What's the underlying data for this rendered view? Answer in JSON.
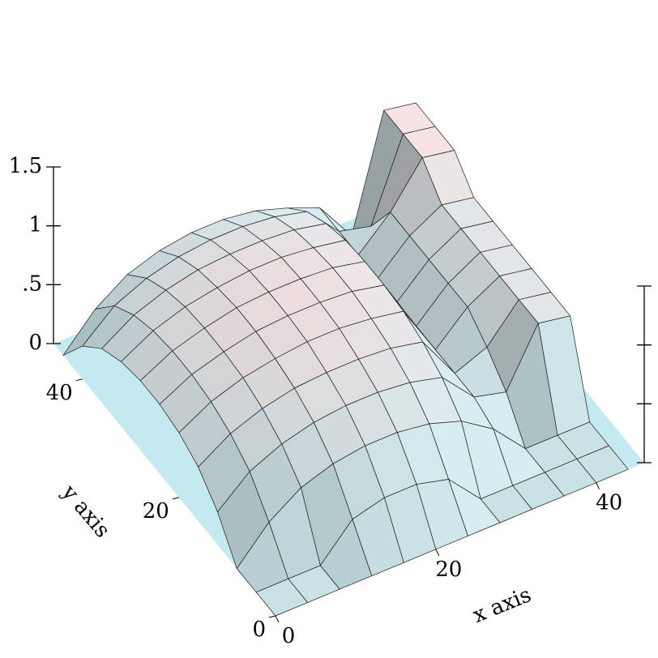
{
  "chart_data": {
    "type": "surface3d",
    "x": [
      0,
      4,
      8,
      12,
      16,
      20,
      24,
      28,
      32,
      36,
      40,
      44
    ],
    "y": [
      0,
      4,
      8,
      12,
      16,
      20,
      24,
      28,
      32,
      36,
      40,
      44
    ],
    "z": [
      [
        0,
        0,
        0,
        0,
        0,
        0,
        0,
        0,
        0,
        0,
        0,
        0
      ],
      [
        0,
        0,
        0,
        0.28,
        0.35,
        0.35,
        0.28,
        0,
        0,
        0,
        0,
        0
      ],
      [
        0,
        0.28,
        0.46,
        0.55,
        0.59,
        0.59,
        0.55,
        0.46,
        0.28,
        0,
        0,
        0
      ],
      [
        0.28,
        0.51,
        0.63,
        0.7,
        0.73,
        0.73,
        0.7,
        0.63,
        0.35,
        0.28,
        0.75,
        0.7
      ],
      [
        0.46,
        0.63,
        0.73,
        0.79,
        0.81,
        0.81,
        0.79,
        0.73,
        0.35,
        0.46,
        0.75,
        0.7
      ],
      [
        0.55,
        0.7,
        0.79,
        0.84,
        0.87,
        0.87,
        0.84,
        0.79,
        0.35,
        0.6,
        0.75,
        0.7
      ],
      [
        0.59,
        0.73,
        0.81,
        0.87,
        0.89,
        0.89,
        0.87,
        0.81,
        0.35,
        0.6,
        0.75,
        0.7
      ],
      [
        0.59,
        0.73,
        0.81,
        0.87,
        0.89,
        0.89,
        0.87,
        0.81,
        0.35,
        0.6,
        0.75,
        0.7
      ],
      [
        0.55,
        0.7,
        0.79,
        0.84,
        0.87,
        0.87,
        0.84,
        0.79,
        0.35,
        0.6,
        0.75,
        0.7
      ],
      [
        0.46,
        0.63,
        0.73,
        0.79,
        0.81,
        0.81,
        0.79,
        0.73,
        0.35,
        0.6,
        0.95,
        0.9
      ],
      [
        0.28,
        0.51,
        0.63,
        0.7,
        0.73,
        0.73,
        0.7,
        0.63,
        0.35,
        0.28,
        0.95,
        0.9
      ],
      [
        0,
        0.28,
        0.46,
        0.55,
        0.59,
        0.59,
        0.55,
        0.46,
        0.35,
        0,
        0.95,
        0.9
      ]
    ],
    "xlim": [
      0,
      46
    ],
    "ylim": [
      0,
      46
    ],
    "zlim": [
      0,
      1.5
    ],
    "xticks": [
      0,
      20,
      40
    ],
    "yticks": [
      0,
      20,
      40
    ],
    "zticks": [
      0,
      {
        "value": 0.5,
        "label": ".5"
      },
      1,
      1.5
    ],
    "x_label": "x axis",
    "y_label": "y axis",
    "floor_color": "#c5e9f1",
    "color_low": "#c9e2e6",
    "color_high": "#f3dcdc",
    "edge_color": "#1a1a1a"
  }
}
